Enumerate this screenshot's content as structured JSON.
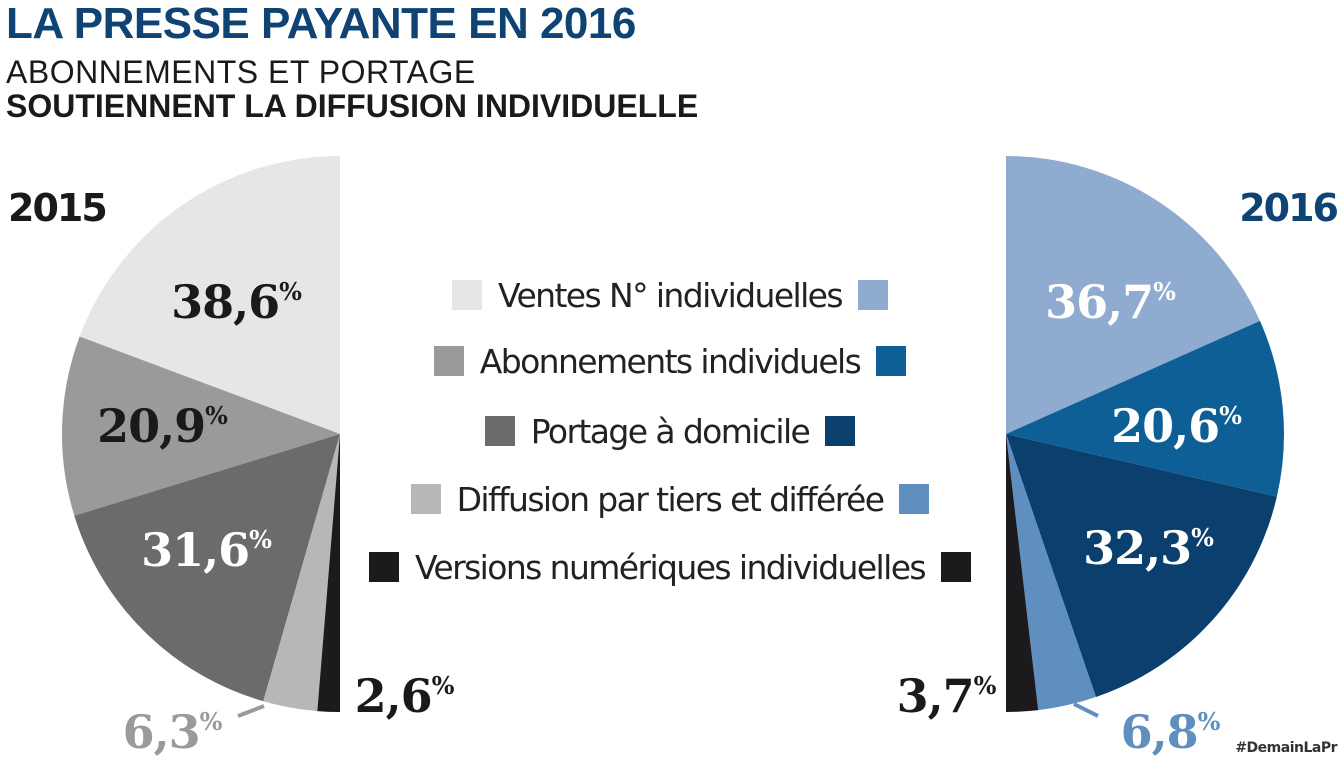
{
  "header": {
    "title": "LA PRESSE PAYANTE EN 2016",
    "subtitle_line1": "ABONNEMENTS ET PORTAGE",
    "subtitle_line2": "SOUTIENNENT LA DIFFUSION INDIVIDUELLE"
  },
  "hashtag": "#DemainLaPr",
  "legend": [
    {
      "label": "Ventes N° individuelles",
      "color_2015": "#e6e6e8",
      "color_2016": "#8fabd0"
    },
    {
      "label": "Abonnements individuels",
      "color_2015": "#9a9a9c",
      "color_2016": "#0e5f96"
    },
    {
      "label": "Portage à domicile",
      "color_2015": "#6b6b6d",
      "color_2016": "#0b3f6e"
    },
    {
      "label": "Diffusion par tiers et différée",
      "color_2015": "#b7b7b9",
      "color_2016": "#5f8fbe"
    },
    {
      "label": "Versions numériques individuelles",
      "color_2015": "#1c1a1c",
      "color_2016": "#1c1a1c"
    }
  ],
  "chart_data": [
    {
      "type": "pie",
      "title": "2015",
      "categories": [
        "Ventes N° individuelles",
        "Abonnements individuels",
        "Portage à domicile",
        "Diffusion par tiers et différée",
        "Versions numériques individuelles"
      ],
      "values": [
        38.6,
        20.9,
        31.6,
        6.3,
        2.6
      ],
      "labels": [
        "38,6",
        "20,9",
        "31,6",
        "6,3",
        "2,6"
      ],
      "unit": "%",
      "colors": [
        "#e6e6e8",
        "#9a9a9c",
        "#6b6b6d",
        "#b7b7b9",
        "#1c1a1c"
      ],
      "label_colors": [
        "#1a1a1a",
        "#1a1a1a",
        "#ffffff",
        "#9a9a9c",
        "#1a1a1a"
      ],
      "half": "left"
    },
    {
      "type": "pie",
      "title": "2016",
      "categories": [
        "Ventes N° individuelles",
        "Abonnements individuels",
        "Portage à domicile",
        "Diffusion par tiers et différée",
        "Versions numériques individuelles"
      ],
      "values": [
        36.7,
        20.6,
        32.3,
        6.8,
        3.7
      ],
      "labels": [
        "36,7",
        "20,6",
        "32,3",
        "6,8",
        "3,7"
      ],
      "unit": "%",
      "colors": [
        "#8fabd0",
        "#0e5f96",
        "#0b3f6e",
        "#5f8fbe",
        "#1c1a1c"
      ],
      "label_colors": [
        "#ffffff",
        "#ffffff",
        "#ffffff",
        "#5f8fbe",
        "#1a1a1a"
      ],
      "half": "right"
    }
  ]
}
